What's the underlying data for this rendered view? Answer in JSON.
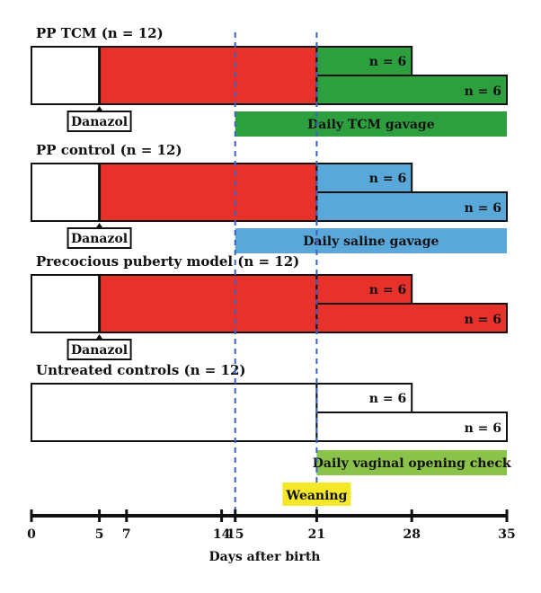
{
  "groups": [
    {
      "title": "PP TCM (n = 12)",
      "early_color": "#ffffff",
      "late_color": "#e8312b",
      "split_color": "#2e9f3e",
      "split_labels": [
        "n = 6",
        "n = 6"
      ],
      "marker": "Danazol",
      "treatment": {
        "label": "Daily TCM gavage",
        "color": "#2e9f3e",
        "start_day": 15,
        "end_day": 35
      }
    },
    {
      "title": "PP control (n = 12)",
      "early_color": "#ffffff",
      "late_color": "#e8312b",
      "split_color": "#5aa7da",
      "split_labels": [
        "n = 6",
        "n = 6"
      ],
      "marker": "Danazol",
      "treatment": {
        "label": "Daily saline gavage",
        "color": "#5aa7da",
        "start_day": 15,
        "end_day": 35
      }
    },
    {
      "title": "Precocious puberty model (n = 12)",
      "early_color": "#ffffff",
      "late_color": "#e8312b",
      "split_color": "#e8312b",
      "split_labels": [
        "n = 6",
        "n = 6"
      ],
      "marker": "Danazol",
      "treatment": null
    },
    {
      "title": "Untreated controls (n = 12)",
      "early_color": "#ffffff",
      "late_color": "#ffffff",
      "split_color": "#ffffff",
      "split_labels": [
        "n = 6",
        "n = 6"
      ],
      "marker": null,
      "treatment": {
        "label": "Daily vaginal opening check",
        "color": "#8bc34a",
        "start_day": 21,
        "end_day": 35
      }
    }
  ],
  "timeline": {
    "injection_day": 5,
    "split_day": 21,
    "end_day_a": 28,
    "end_day_b": 35,
    "dashed_days": [
      15,
      21
    ],
    "dashed_color": "#3a62c4"
  },
  "weaning": {
    "label": "Weaning",
    "color": "#f5e829",
    "day": 21
  },
  "axis": {
    "min": 0,
    "max": 35,
    "ticks": [
      "0",
      "5",
      "7",
      "14",
      "15",
      "21",
      "28",
      "35"
    ],
    "label": "Days after birth"
  }
}
